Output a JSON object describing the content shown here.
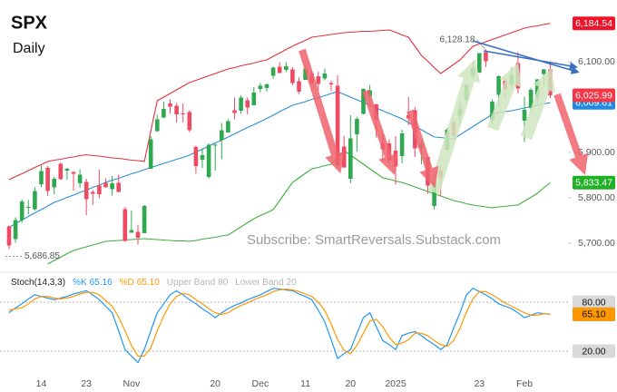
{
  "title": "SPX",
  "subtitle": "Daily",
  "watermark": "Subscribe: SmartReversals.Substack.com",
  "chart_data": [
    {
      "type": "candlestick",
      "categories": [
        null,
        null,
        null,
        null,
        null,
        "14",
        null,
        null,
        null,
        null,
        null,
        null,
        "23",
        null,
        null,
        null,
        null,
        null,
        null,
        "Nov",
        null,
        null,
        null,
        null,
        null,
        null,
        null,
        null,
        null,
        null,
        null,
        null,
        "20",
        null,
        null,
        null,
        null,
        null,
        null,
        "Dec",
        null,
        null,
        null,
        null,
        null,
        null,
        "11",
        null,
        null,
        null,
        null,
        null,
        null,
        "20",
        null,
        null,
        null,
        null,
        null,
        null,
        "2025",
        null,
        null,
        null,
        null,
        null,
        null,
        null,
        null,
        null,
        null,
        null,
        null,
        "23",
        null,
        null,
        null,
        null,
        null,
        null,
        "Feb",
        null,
        null,
        null,
        null
      ],
      "open": [
        5737,
        5709,
        5751,
        5778,
        5775,
        5830,
        5866,
        5823,
        5875,
        5860,
        5857,
        5832,
        5835,
        5813,
        5827,
        5833,
        5819,
        5833,
        5775,
        5723,
        5725,
        5722,
        5864,
        5947,
        5977,
        6008,
        6003,
        5986,
        5989,
        5912,
        5884,
        5846,
        5916,
        5927,
        5944,
        5993,
        5992,
        6015,
        6004,
        6040,
        6042,
        6069,
        6089,
        6082,
        6083,
        6057,
        6060,
        6074,
        6068,
        6063,
        6053,
        6047,
        5913,
        5842,
        5940,
        5985,
        6024,
        6006,
        5920,
        5920,
        5904,
        5892,
        5982,
        5993,
        5910,
        5890,
        5782,
        5860,
        5906,
        5967,
        5981,
        6015,
        6069,
        6076,
        6121,
        5970,
        6027,
        6058,
        6050,
        6097,
        5970,
        5998,
        6021,
        6073,
        6083
      ],
      "high": [
        5739,
        5757,
        5796,
        5795,
        5823,
        5871,
        5870,
        5846,
        5878,
        5866,
        5858,
        5863,
        5842,
        5817,
        5862,
        5843,
        5848,
        5851,
        5780,
        5772,
        5741,
        5784,
        5936,
        5983,
        6012,
        6017,
        6009,
        6008,
        5993,
        5915,
        5909,
        5920,
        5920,
        5965,
        5973,
        6021,
        6026,
        6021,
        6044,
        6053,
        6052,
        6089,
        6099,
        6099,
        6088,
        6065,
        6092,
        6080,
        6078,
        6085,
        6058,
        6070,
        5936,
        5982,
        5978,
        6041,
        6049,
        6007,
        5941,
        5929,
        5936,
        5950,
        6022,
        6000,
        5928,
        5890,
        5836,
        5871,
        5954,
        5974,
        6011,
        6051,
        6100,
        6119,
        6128.18,
        6017,
        6070,
        6063,
        6087,
        6121,
        6023,
        6042,
        6062,
        6084,
        6101
      ],
      "low": [
        5686.85,
        5701,
        5745,
        5764,
        5772,
        5824,
        5804,
        5808,
        5840,
        5840,
        5816,
        5822,
        5762,
        5785,
        5799,
        5823,
        5805,
        5812,
        5703,
        5723,
        5697,
        5722,
        5864,
        5945,
        5976,
        5986,
        5966,
        5966,
        5945,
        5853,
        5866,
        5843,
        5860,
        5885,
        5944,
        5973,
        5986,
        5984,
        6004,
        6033,
        6034,
        6062,
        6075,
        6077,
        6048,
        6029,
        6060,
        6051,
        6036,
        6059,
        6035,
        5867,
        5866,
        5832,
        5902,
        5984,
        6007,
        5933,
        5879,
        5869,
        5829,
        5876,
        5960,
        5890,
        5874,
        5809,
        5774,
        5805,
        5906,
        5935,
        5963,
        6007,
        6062,
        6075,
        6088,
        5962,
        6002,
        6018,
        6042,
        6030,
        5923,
        5990,
        6007,
        6045,
        6020
      ],
      "close": [
        5695,
        5751,
        5792,
        5780,
        5815,
        5859,
        5815,
        5842,
        5841,
        5864,
        5853,
        5851,
        5797,
        5809,
        5808,
        5823,
        5832,
        5813,
        5705,
        5729,
        5712,
        5782,
        5929,
        5973,
        5996,
        6001,
        5984,
        5985,
        5949,
        5870,
        5894,
        5917,
        5917,
        5949,
        5969,
        5987,
        6021,
        5999,
        6032,
        6047,
        6050,
        6087,
        6075,
        6090,
        6053,
        6034,
        6085,
        6051,
        6051,
        6074,
        6050,
        5872,
        5867,
        5931,
        5974,
        6040,
        6037,
        5971,
        5907,
        5882,
        5869,
        5942,
        5975,
        5909,
        5918,
        5827,
        5836,
        5843,
        5950,
        5937,
        5997,
        6049,
        6086,
        6119,
        6101,
        6012,
        6068,
        6039,
        6071,
        6041,
        5994,
        6038,
        6061,
        6083,
        6025.99
      ],
      "up_color": "#2fa84f",
      "down_color": "#ee4a62",
      "close_tag": {
        "value": 6025.99,
        "label": "6,025.99",
        "color": "#f23645"
      },
      "bands": [
        {
          "color": "#e3303f",
          "values": [
            5840,
            5847,
            5853,
            5860,
            5867,
            5873,
            5880,
            5883,
            5885,
            5888,
            5890,
            5893,
            5895,
            5893,
            5892,
            5890,
            5888,
            5887,
            5885,
            5883,
            5882,
            5880,
            5947,
            6014,
            6022,
            6030,
            6038,
            6046,
            6054,
            6059,
            6064,
            6069,
            6074,
            6079,
            6084,
            6087,
            6091,
            6094,
            6097,
            6101,
            6104,
            6112,
            6119,
            6127,
            6134,
            6141,
            6147,
            6154,
            6156,
            6158,
            6160,
            6162,
            6164,
            6165,
            6166,
            6167,
            6167,
            6168,
            6169,
            6170,
            6165,
            6159,
            6154,
            6134,
            6114,
            6101,
            6087,
            6074,
            6084,
            6094,
            6104,
            6119,
            6134,
            6139,
            6144,
            6149,
            6154,
            6159,
            6164,
            6169,
            6174,
            6177,
            6179,
            6182,
            6184.54
          ],
          "tag": {
            "value": 6184.54,
            "label": "6,184.54"
          }
        },
        {
          "color": "#2a8fd6",
          "values": [
            5735,
            5743,
            5751,
            5759,
            5767,
            5774,
            5782,
            5790,
            5795,
            5801,
            5806,
            5812,
            5817,
            5823,
            5828,
            5834,
            5839,
            5843,
            5848,
            5853,
            5857,
            5862,
            5867,
            5871,
            5876,
            5880,
            5885,
            5889,
            5894,
            5901,
            5907,
            5914,
            5921,
            5927,
            5934,
            5941,
            5948,
            5955,
            5961,
            5968,
            5975,
            5982,
            5990,
            5997,
            6004,
            6008,
            6012,
            6017,
            6021,
            6025,
            6030,
            6034,
            6028,
            6022,
            6016,
            6010,
            6004,
            5998,
            5992,
            5986,
            5980,
            5974,
            5966,
            5958,
            5950,
            5942,
            5934,
            5933,
            5931,
            5930,
            5939,
            5948,
            5957,
            5966,
            5975,
            5984,
            5987,
            5990,
            5992,
            5995,
            5998,
            6001,
            6004,
            6007,
            6009.61
          ],
          "tag": {
            "value": 6009.61,
            "label": "6,009.61"
          }
        },
        {
          "color": "#3fae3f",
          "values": [
            null,
            null,
            null,
            null,
            null,
            null,
            5654,
            5662,
            5669,
            5677,
            5684,
            5688,
            5692,
            5696,
            5700,
            5704,
            5705,
            5706,
            5707,
            5708,
            5709,
            5710,
            5709,
            5708,
            5707,
            5706,
            5705,
            5705,
            5704,
            5706,
            5709,
            5711,
            5713,
            5716,
            5718,
            5727,
            5736,
            5745,
            5754,
            5761,
            5767,
            5774,
            5794,
            5814,
            5834,
            5844,
            5854,
            5864,
            5867,
            5871,
            5874,
            5889,
            5904,
            5894,
            5884,
            5874,
            5864,
            5854,
            5844,
            5841,
            5837,
            5834,
            5829,
            5824,
            5819,
            5814,
            5809,
            5804,
            5799,
            5794,
            5791,
            5787,
            5784,
            5782,
            5780,
            5778,
            5780,
            5781,
            5783,
            5784,
            5793,
            5801,
            5810,
            5822,
            5833.47
          ],
          "tag": {
            "value": 5833.47,
            "label": "5,833.47"
          }
        }
      ],
      "annotations": [
        {
          "value": 6128.18,
          "label": "6,128.18"
        },
        {
          "value": 5686.85,
          "label": "5,686.85"
        }
      ],
      "ylim": [
        5650,
        6230
      ],
      "yticks": [
        {
          "value": 6100,
          "label": "6,100.00"
        },
        {
          "value": 5900,
          "label": "5,900.00"
        },
        {
          "value": 5800,
          "label": "5,800.00"
        },
        {
          "value": 5700,
          "label": "5,700.00"
        }
      ],
      "grid": false
    },
    {
      "type": "line",
      "title": "Stoch(14,3,3)",
      "series": [
        {
          "name": "%K",
          "color": "#2196f3",
          "values": [
            67,
            73,
            78,
            84,
            89,
            87,
            85,
            83,
            85,
            87,
            90,
            92,
            94,
            89,
            83,
            75,
            67,
            45,
            22,
            14,
            6,
            22,
            45,
            67,
            78,
            89,
            94,
            89,
            83,
            78,
            72,
            67,
            61,
            67,
            72,
            76,
            79,
            83,
            86,
            89,
            93,
            97,
            96,
            95,
            94,
            90,
            87,
            83,
            70,
            56,
            34,
            11,
            17,
            22,
            42,
            61,
            67,
            50,
            33,
            28,
            22,
            39,
            42,
            44,
            39,
            33,
            28,
            22,
            28,
            48,
            67,
            89,
            97,
            93,
            89,
            84,
            78,
            75,
            72,
            67,
            61,
            64,
            67,
            66,
            65.16
          ],
          "current": {
            "value": 65.16,
            "label": "65.16"
          }
        },
        {
          "name": "%D",
          "color": "#ff9800",
          "values": [
            70,
            72,
            73,
            78,
            84,
            87,
            87,
            85,
            84,
            85,
            87,
            90,
            92,
            92,
            89,
            82,
            75,
            62,
            45,
            27,
            14,
            14,
            24,
            45,
            63,
            78,
            87,
            91,
            89,
            83,
            78,
            72,
            67,
            65,
            67,
            72,
            76,
            79,
            83,
            86,
            89,
            93,
            95,
            96,
            95,
            93,
            90,
            87,
            80,
            70,
            53,
            34,
            21,
            17,
            27,
            42,
            57,
            59,
            50,
            37,
            28,
            30,
            34,
            42,
            42,
            39,
            33,
            28,
            26,
            33,
            48,
            68,
            84,
            93,
            93,
            89,
            84,
            79,
            75,
            71,
            67,
            64,
            64,
            66,
            65.1
          ],
          "current": {
            "value": 65.1,
            "label": "65.10"
          }
        }
      ],
      "bands": [
        {
          "name": "Upper Band",
          "value": 80
        },
        {
          "name": "Lower Band",
          "value": 20
        }
      ],
      "ylim": [
        0,
        100
      ],
      "yticks": [
        {
          "value": 80,
          "label": "80.00"
        },
        {
          "value": 20,
          "label": "20.00"
        }
      ],
      "grid": false
    }
  ]
}
